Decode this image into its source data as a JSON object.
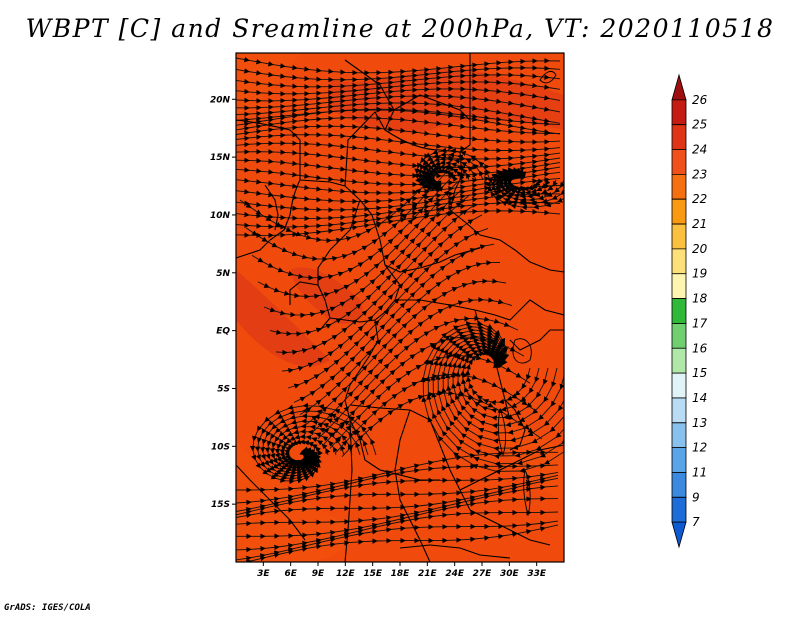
{
  "title": "WBPT [C] and Sreamline at 200hPa, VT: 2020110518",
  "credit": "GrADS: IGES/COLA",
  "map": {
    "lon_range": [
      0,
      36
    ],
    "lat_range": [
      -20,
      24
    ],
    "field_color": "#f04a0c",
    "field_color_light": "#f5580f",
    "field_color_dark": "#d8341a",
    "y_ticks": [
      {
        "label": "20N",
        "lat": 20
      },
      {
        "label": "15N",
        "lat": 15
      },
      {
        "label": "10N",
        "lat": 10
      },
      {
        "label": "5N",
        "lat": 5
      },
      {
        "label": "EQ",
        "lat": 0
      },
      {
        "label": "5S",
        "lat": -5
      },
      {
        "label": "10S",
        "lat": -10
      },
      {
        "label": "15S",
        "lat": -15
      }
    ],
    "x_ticks": [
      {
        "label": "3E",
        "lon": 3
      },
      {
        "label": "6E",
        "lon": 6
      },
      {
        "label": "9E",
        "lon": 9
      },
      {
        "label": "12E",
        "lon": 12
      },
      {
        "label": "15E",
        "lon": 15
      },
      {
        "label": "18E",
        "lon": 18
      },
      {
        "label": "21E",
        "lon": 21
      },
      {
        "label": "24E",
        "lon": 24
      },
      {
        "label": "27E",
        "lon": 27
      },
      {
        "label": "30E",
        "lon": 30
      },
      {
        "label": "33E",
        "lon": 33
      }
    ]
  },
  "colorbar": {
    "labels": [
      "26",
      "25",
      "24",
      "23",
      "22",
      "21",
      "20",
      "19",
      "18",
      "17",
      "16",
      "15",
      "14",
      "13",
      "12",
      "11",
      "9",
      "7"
    ],
    "colors": [
      "#a00f0f",
      "#c41c12",
      "#df3517",
      "#f0501a",
      "#f57010",
      "#fa9a12",
      "#fcc040",
      "#fde07a",
      "#fef5b0",
      "#30b838",
      "#70d070",
      "#b0e8a8",
      "#e0f4f8",
      "#b8dcf4",
      "#88c0ee",
      "#5aa4e8",
      "#3c8ae0",
      "#1e6cd8",
      "#0e5ad0"
    ]
  }
}
